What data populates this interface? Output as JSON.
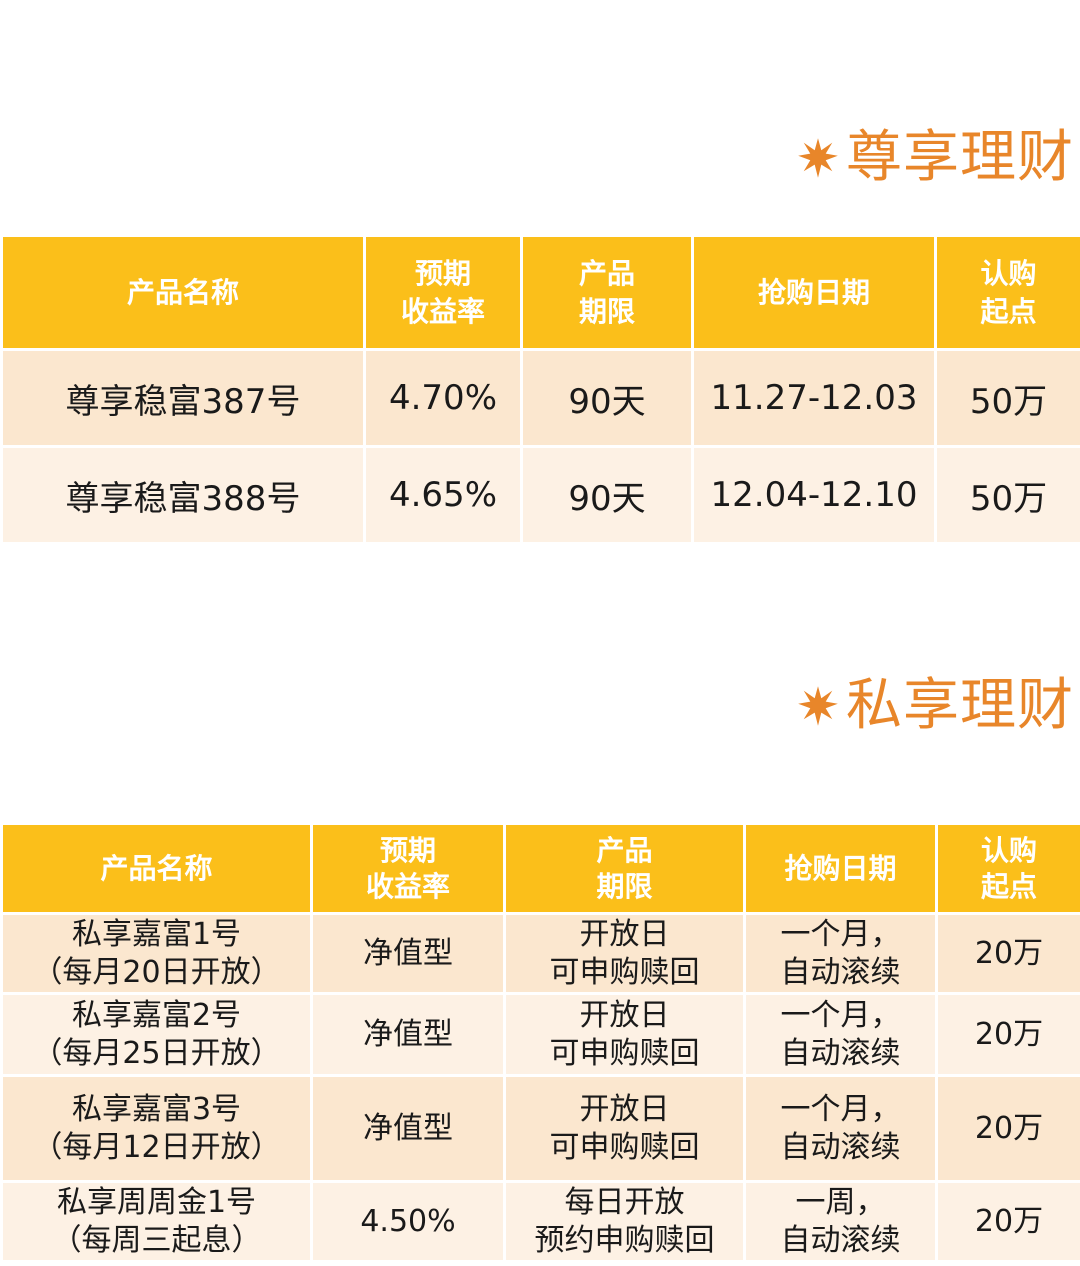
{
  "section1": {
    "title": "尊享理财",
    "headers": {
      "name": "产品名称",
      "rate_line1": "预期",
      "rate_line2": "收益率",
      "term_line1": "产品",
      "term_line2": "期限",
      "date": "抢购日期",
      "min_line1": "认购",
      "min_line2": "起点"
    },
    "rows": [
      {
        "name": "尊享稳富387号",
        "rate": "4.70%",
        "term": "90天",
        "date": "11.27-12.03",
        "min": "50万"
      },
      {
        "name": "尊享稳富388号",
        "rate": "4.65%",
        "term": "90天",
        "date": "12.04-12.10",
        "min": "50万"
      }
    ]
  },
  "section2": {
    "title": "私享理财",
    "headers": {
      "name": "产品名称",
      "rate_line1": "预期",
      "rate_line2": "收益率",
      "term_line1": "产品",
      "term_line2": "期限",
      "date": "抢购日期",
      "min_line1": "认购",
      "min_line2": "起点"
    },
    "rows": [
      {
        "name_line1": "私享嘉富1号",
        "name_line2": "（每月20日开放）",
        "rate": "净值型",
        "term_line1": "开放日",
        "term_line2": "可申购赎回",
        "date_line1": "一个月，",
        "date_line2": "自动滚续",
        "min": "20万"
      },
      {
        "name_line1": "私享嘉富2号",
        "name_line2": "（每月25日开放）",
        "rate": "净值型",
        "term_line1": "开放日",
        "term_line2": "可申购赎回",
        "date_line1": "一个月，",
        "date_line2": "自动滚续",
        "min": "20万"
      },
      {
        "name_line1": "私享嘉富3号",
        "name_line2": "（每月12日开放）",
        "rate": "净值型",
        "term_line1": "开放日",
        "term_line2": "可申购赎回",
        "date_line1": "一个月，",
        "date_line2": "自动滚续",
        "min": "20万"
      },
      {
        "name_line1": "私享周周金1号",
        "name_line2": "（每周三起息）",
        "rate": "4.50%",
        "term_line1": "每日开放",
        "term_line2": "预约申购赎回",
        "date_line1": "一周，",
        "date_line2": "自动滚续",
        "min": "20万"
      }
    ]
  },
  "colors": {
    "title": "#e8862a",
    "header_bg": "#fbbf1a",
    "row_odd": "#fbe7cf",
    "row_even": "#fdf1e4"
  },
  "icons": {
    "title_marker": "starburst-icon"
  }
}
